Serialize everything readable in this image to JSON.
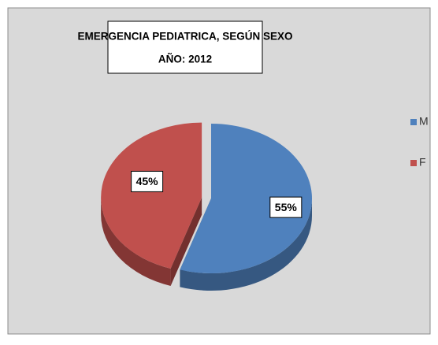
{
  "chart_data": {
    "type": "pie",
    "title": "EMERGENCIA PEDIATRICA, SEGÚN SEXO",
    "subtitle": "AÑO: 2012",
    "categories": [
      "M",
      "F"
    ],
    "values": [
      55,
      45
    ],
    "value_labels": [
      "55%",
      "45%"
    ],
    "colors": [
      "#4f81bd",
      "#c0504d"
    ],
    "legend": "right"
  }
}
